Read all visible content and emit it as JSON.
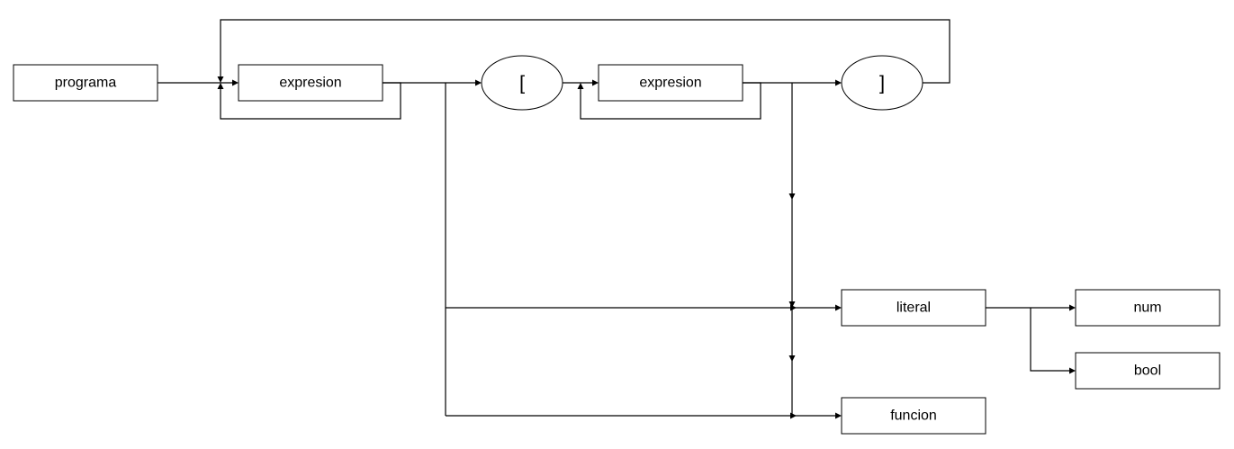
{
  "nodes": {
    "programa": "programa",
    "expresion_1": "expresion",
    "open_bracket": "[",
    "expresion_2": "expresion",
    "close_bracket": "]",
    "literal": "literal",
    "num": "num",
    "bool": "bool",
    "funcion": "funcion"
  },
  "colors": {
    "stroke": "#000000",
    "fill": "#ffffff",
    "text": "#000000"
  }
}
